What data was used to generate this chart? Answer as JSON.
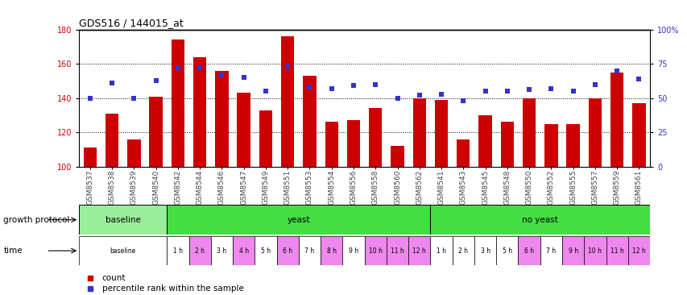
{
  "title": "GDS516 / 144015_at",
  "samples": [
    "GSM8537",
    "GSM8538",
    "GSM8539",
    "GSM8540",
    "GSM8542",
    "GSM8544",
    "GSM8546",
    "GSM8547",
    "GSM8549",
    "GSM8551",
    "GSM8553",
    "GSM8554",
    "GSM8556",
    "GSM8558",
    "GSM8560",
    "GSM8562",
    "GSM8541",
    "GSM8543",
    "GSM8545",
    "GSM8548",
    "GSM8550",
    "GSM8552",
    "GSM8555",
    "GSM8557",
    "GSM8559",
    "GSM8561"
  ],
  "counts": [
    111,
    131,
    116,
    141,
    174,
    164,
    156,
    143,
    133,
    176,
    153,
    126,
    127,
    134,
    112,
    140,
    139,
    116,
    130,
    126,
    140,
    125,
    125,
    140,
    155,
    137
  ],
  "percentiles": [
    50,
    61,
    50,
    63,
    72,
    72,
    67,
    65,
    55,
    73,
    58,
    57,
    59,
    60,
    50,
    52,
    53,
    48,
    55,
    55,
    56,
    57,
    55,
    60,
    70,
    64
  ],
  "ylim_left": [
    100,
    180
  ],
  "ylim_right": [
    0,
    100
  ],
  "yticks_left": [
    100,
    120,
    140,
    160,
    180
  ],
  "yticks_right": [
    0,
    25,
    50,
    75,
    100
  ],
  "ytick_right_labels": [
    "0",
    "25",
    "50",
    "75",
    "100%"
  ],
  "bar_color": "#cc0000",
  "dot_color": "#3333cc",
  "protocol_data": [
    {
      "label": "baseline",
      "start": 0,
      "end": 4,
      "color": "#99ee99"
    },
    {
      "label": "yeast",
      "start": 4,
      "end": 16,
      "color": "#44dd44"
    },
    {
      "label": "no yeast",
      "start": 16,
      "end": 26,
      "color": "#44dd44"
    }
  ],
  "time_data": [
    {
      "label": "baseline",
      "start": 0,
      "end": 4,
      "color": "#ffffff"
    },
    {
      "label": "1 h",
      "start": 4,
      "end": 5,
      "color": "#ffffff"
    },
    {
      "label": "2 h",
      "start": 5,
      "end": 6,
      "color": "#ee88ee"
    },
    {
      "label": "3 h",
      "start": 6,
      "end": 7,
      "color": "#ffffff"
    },
    {
      "label": "4 h",
      "start": 7,
      "end": 8,
      "color": "#ee88ee"
    },
    {
      "label": "5 h",
      "start": 8,
      "end": 9,
      "color": "#ffffff"
    },
    {
      "label": "6 h",
      "start": 9,
      "end": 10,
      "color": "#ee88ee"
    },
    {
      "label": "7 h",
      "start": 10,
      "end": 11,
      "color": "#ffffff"
    },
    {
      "label": "8 h",
      "start": 11,
      "end": 12,
      "color": "#ee88ee"
    },
    {
      "label": "9 h",
      "start": 12,
      "end": 13,
      "color": "#ffffff"
    },
    {
      "label": "10 h",
      "start": 13,
      "end": 14,
      "color": "#ee88ee"
    },
    {
      "label": "11 h",
      "start": 14,
      "end": 15,
      "color": "#ee88ee"
    },
    {
      "label": "12 h",
      "start": 15,
      "end": 16,
      "color": "#ee88ee"
    },
    {
      "label": "1 h",
      "start": 16,
      "end": 17,
      "color": "#ffffff"
    },
    {
      "label": "2 h",
      "start": 17,
      "end": 18,
      "color": "#ffffff"
    },
    {
      "label": "3 h",
      "start": 18,
      "end": 19,
      "color": "#ffffff"
    },
    {
      "label": "5 h",
      "start": 19,
      "end": 20,
      "color": "#ffffff"
    },
    {
      "label": "6 h",
      "start": 20,
      "end": 21,
      "color": "#ee88ee"
    },
    {
      "label": "7 h",
      "start": 21,
      "end": 22,
      "color": "#ffffff"
    },
    {
      "label": "9 h",
      "start": 22,
      "end": 23,
      "color": "#ee88ee"
    },
    {
      "label": "10 h",
      "start": 23,
      "end": 24,
      "color": "#ee88ee"
    },
    {
      "label": "11 h",
      "start": 24,
      "end": 25,
      "color": "#ee88ee"
    },
    {
      "label": "12 h",
      "start": 25,
      "end": 26,
      "color": "#ee88ee"
    }
  ]
}
